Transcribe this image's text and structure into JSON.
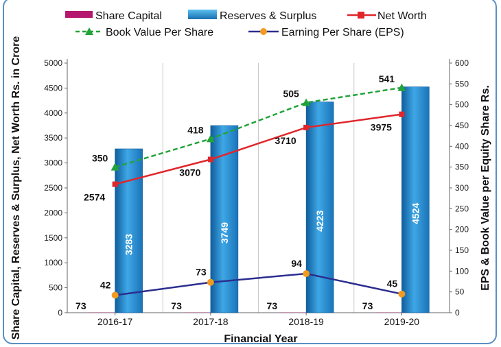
{
  "chart_data": {
    "type": "bar",
    "categories": [
      "2016-17",
      "2017-18",
      "2018-19",
      "2019-20"
    ],
    "xlabel": "Financial Year",
    "ylabel_left": "Share Capital, Reserves & Surplus, Net Worth  Rs. in Crore",
    "ylabel_right": "EPS & Book Value per Equity Share Rs.",
    "ylim_left": [
      0,
      5000
    ],
    "ylim_right": [
      0,
      600
    ],
    "yticks_left": [
      0,
      500,
      1000,
      1500,
      2000,
      2500,
      3000,
      3500,
      4000,
      4500,
      5000
    ],
    "yticks_right": [
      0,
      50,
      100,
      150,
      200,
      250,
      300,
      350,
      400,
      450,
      500,
      550,
      600
    ],
    "grid": "vertical",
    "legend_position": "top",
    "series": [
      {
        "name": "Share Capital",
        "kind": "bar",
        "axis": "left",
        "color": "#b5176e",
        "values": [
          73,
          73,
          73,
          73
        ]
      },
      {
        "name": "Reserves & Surplus",
        "kind": "bar",
        "axis": "left",
        "color": "#1d7cc0",
        "values": [
          3283,
          3749,
          4223,
          4524
        ]
      },
      {
        "name": "Net Worth",
        "kind": "line",
        "axis": "left",
        "color": "#e0262b",
        "marker": "square",
        "values": [
          2574,
          3070,
          3710,
          3975
        ]
      },
      {
        "name": "Book Value Per Share",
        "kind": "line",
        "axis": "right",
        "color": "#22a339",
        "marker": "triangle",
        "dashed": true,
        "values": [
          350,
          418,
          505,
          541
        ]
      },
      {
        "name": "Earning Per Share (EPS)",
        "kind": "line",
        "axis": "right",
        "color": "#2b2e8f",
        "marker": "circle",
        "marker_color": "#f39a21",
        "values": [
          42,
          73,
          94,
          45
        ]
      }
    ]
  }
}
